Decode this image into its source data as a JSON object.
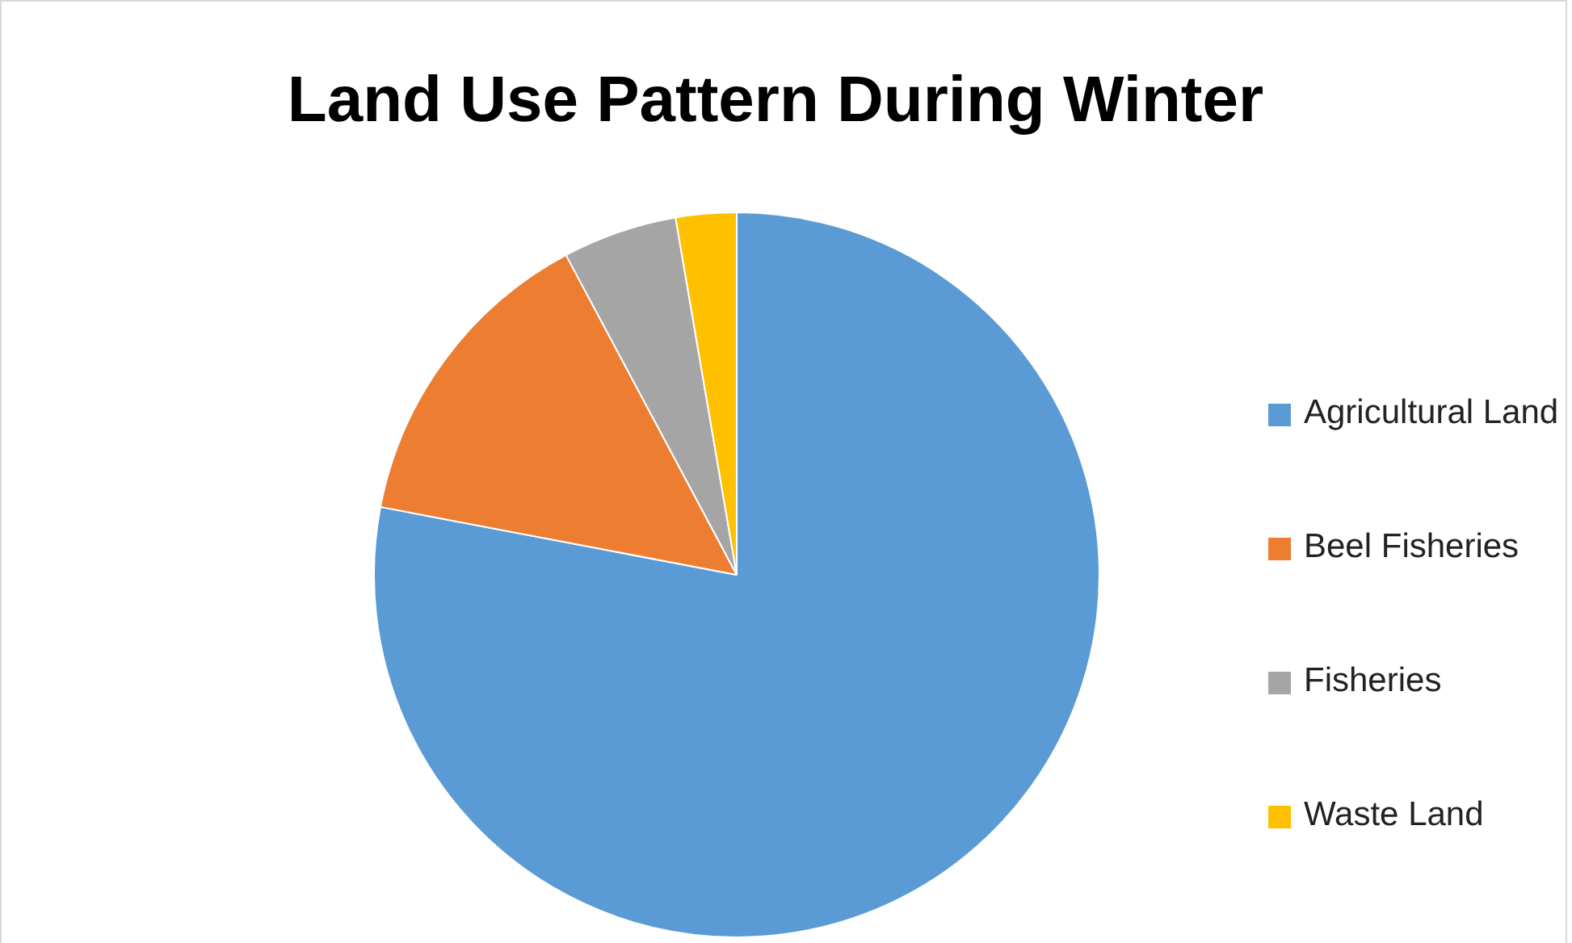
{
  "chart_data": {
    "type": "pie",
    "title": "Land Use Pattern During Winter",
    "categories": [
      "Agricultural Land",
      "Beel Fisheries",
      "Fisheries",
      "Waste Land"
    ],
    "values": [
      78,
      14.2,
      5.1,
      2.7
    ],
    "colors": [
      "#5b9bd5",
      "#ed7d31",
      "#a5a5a5",
      "#ffc000"
    ],
    "legend": "right"
  }
}
